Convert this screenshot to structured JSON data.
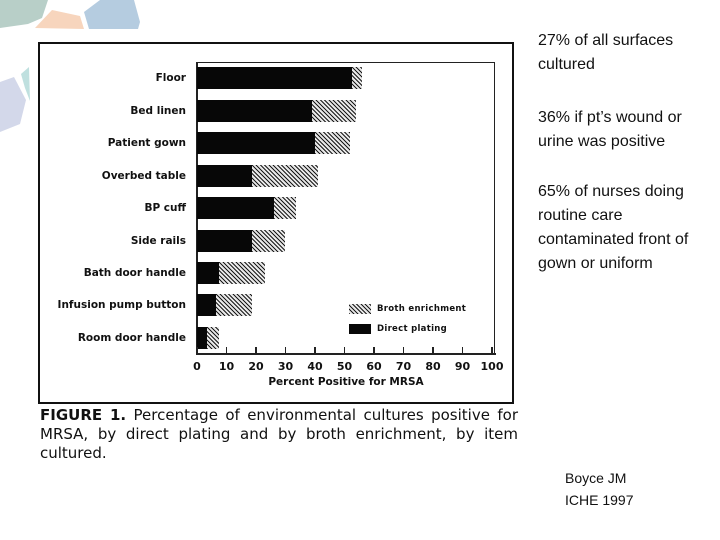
{
  "decor": {
    "shapes": [
      {
        "name": "green-hexagon",
        "color": "#b8cfc8"
      },
      {
        "name": "peach-hexagon",
        "color": "#f7d5bd"
      },
      {
        "name": "blue-hexagon",
        "color": "#b5cce0"
      },
      {
        "name": "lavender-hexagon",
        "color": "#d3d8ea"
      },
      {
        "name": "teal-sliver",
        "color": "#bfe0df"
      }
    ]
  },
  "chart_data": {
    "type": "bar",
    "orientation": "horizontal",
    "stacked": true,
    "title": "",
    "xlabel": "Percent Positive for MRSA",
    "ylabel": "",
    "xlim": [
      0,
      100
    ],
    "x_ticks": [
      0,
      10,
      20,
      30,
      40,
      50,
      60,
      70,
      80,
      90,
      100
    ],
    "grid": false,
    "legend_position": "lower right inside plot",
    "categories": [
      "Floor",
      "Bed linen",
      "Patient gown",
      "Overbed table",
      "BP cuff",
      "Side rails",
      "Bath door handle",
      "Infusion pump button",
      "Room door handle"
    ],
    "series": [
      {
        "name": "Direct plating",
        "values": [
          52.5,
          39,
          40,
          18.5,
          26,
          18.5,
          7.5,
          6.5,
          3.5
        ],
        "fill": "solid black"
      },
      {
        "name": "Broth enrichment",
        "values": [
          3.5,
          15,
          12,
          22.5,
          7.5,
          11.5,
          15.5,
          12,
          4
        ],
        "fill": "hatched"
      }
    ],
    "totals": [
      56,
      54,
      52,
      41,
      33.5,
      30,
      23,
      18.5,
      7.5
    ],
    "legend": [
      "Broth enrichment",
      "Direct plating"
    ]
  },
  "caption": {
    "figure_label": "FIGURE 1.",
    "text": " Percentage of environmental cultures positive for MRSA, by direct plating and by broth enrichment, by item cultured."
  },
  "notes": [
    "27% of all surfaces cultured",
    "36% if pt’s wound or urine was positive",
    "65% of nurses doing routine care contaminated front of gown or uniform"
  ],
  "citation": {
    "author": "Boyce JM",
    "source": "ICHE 1997"
  }
}
